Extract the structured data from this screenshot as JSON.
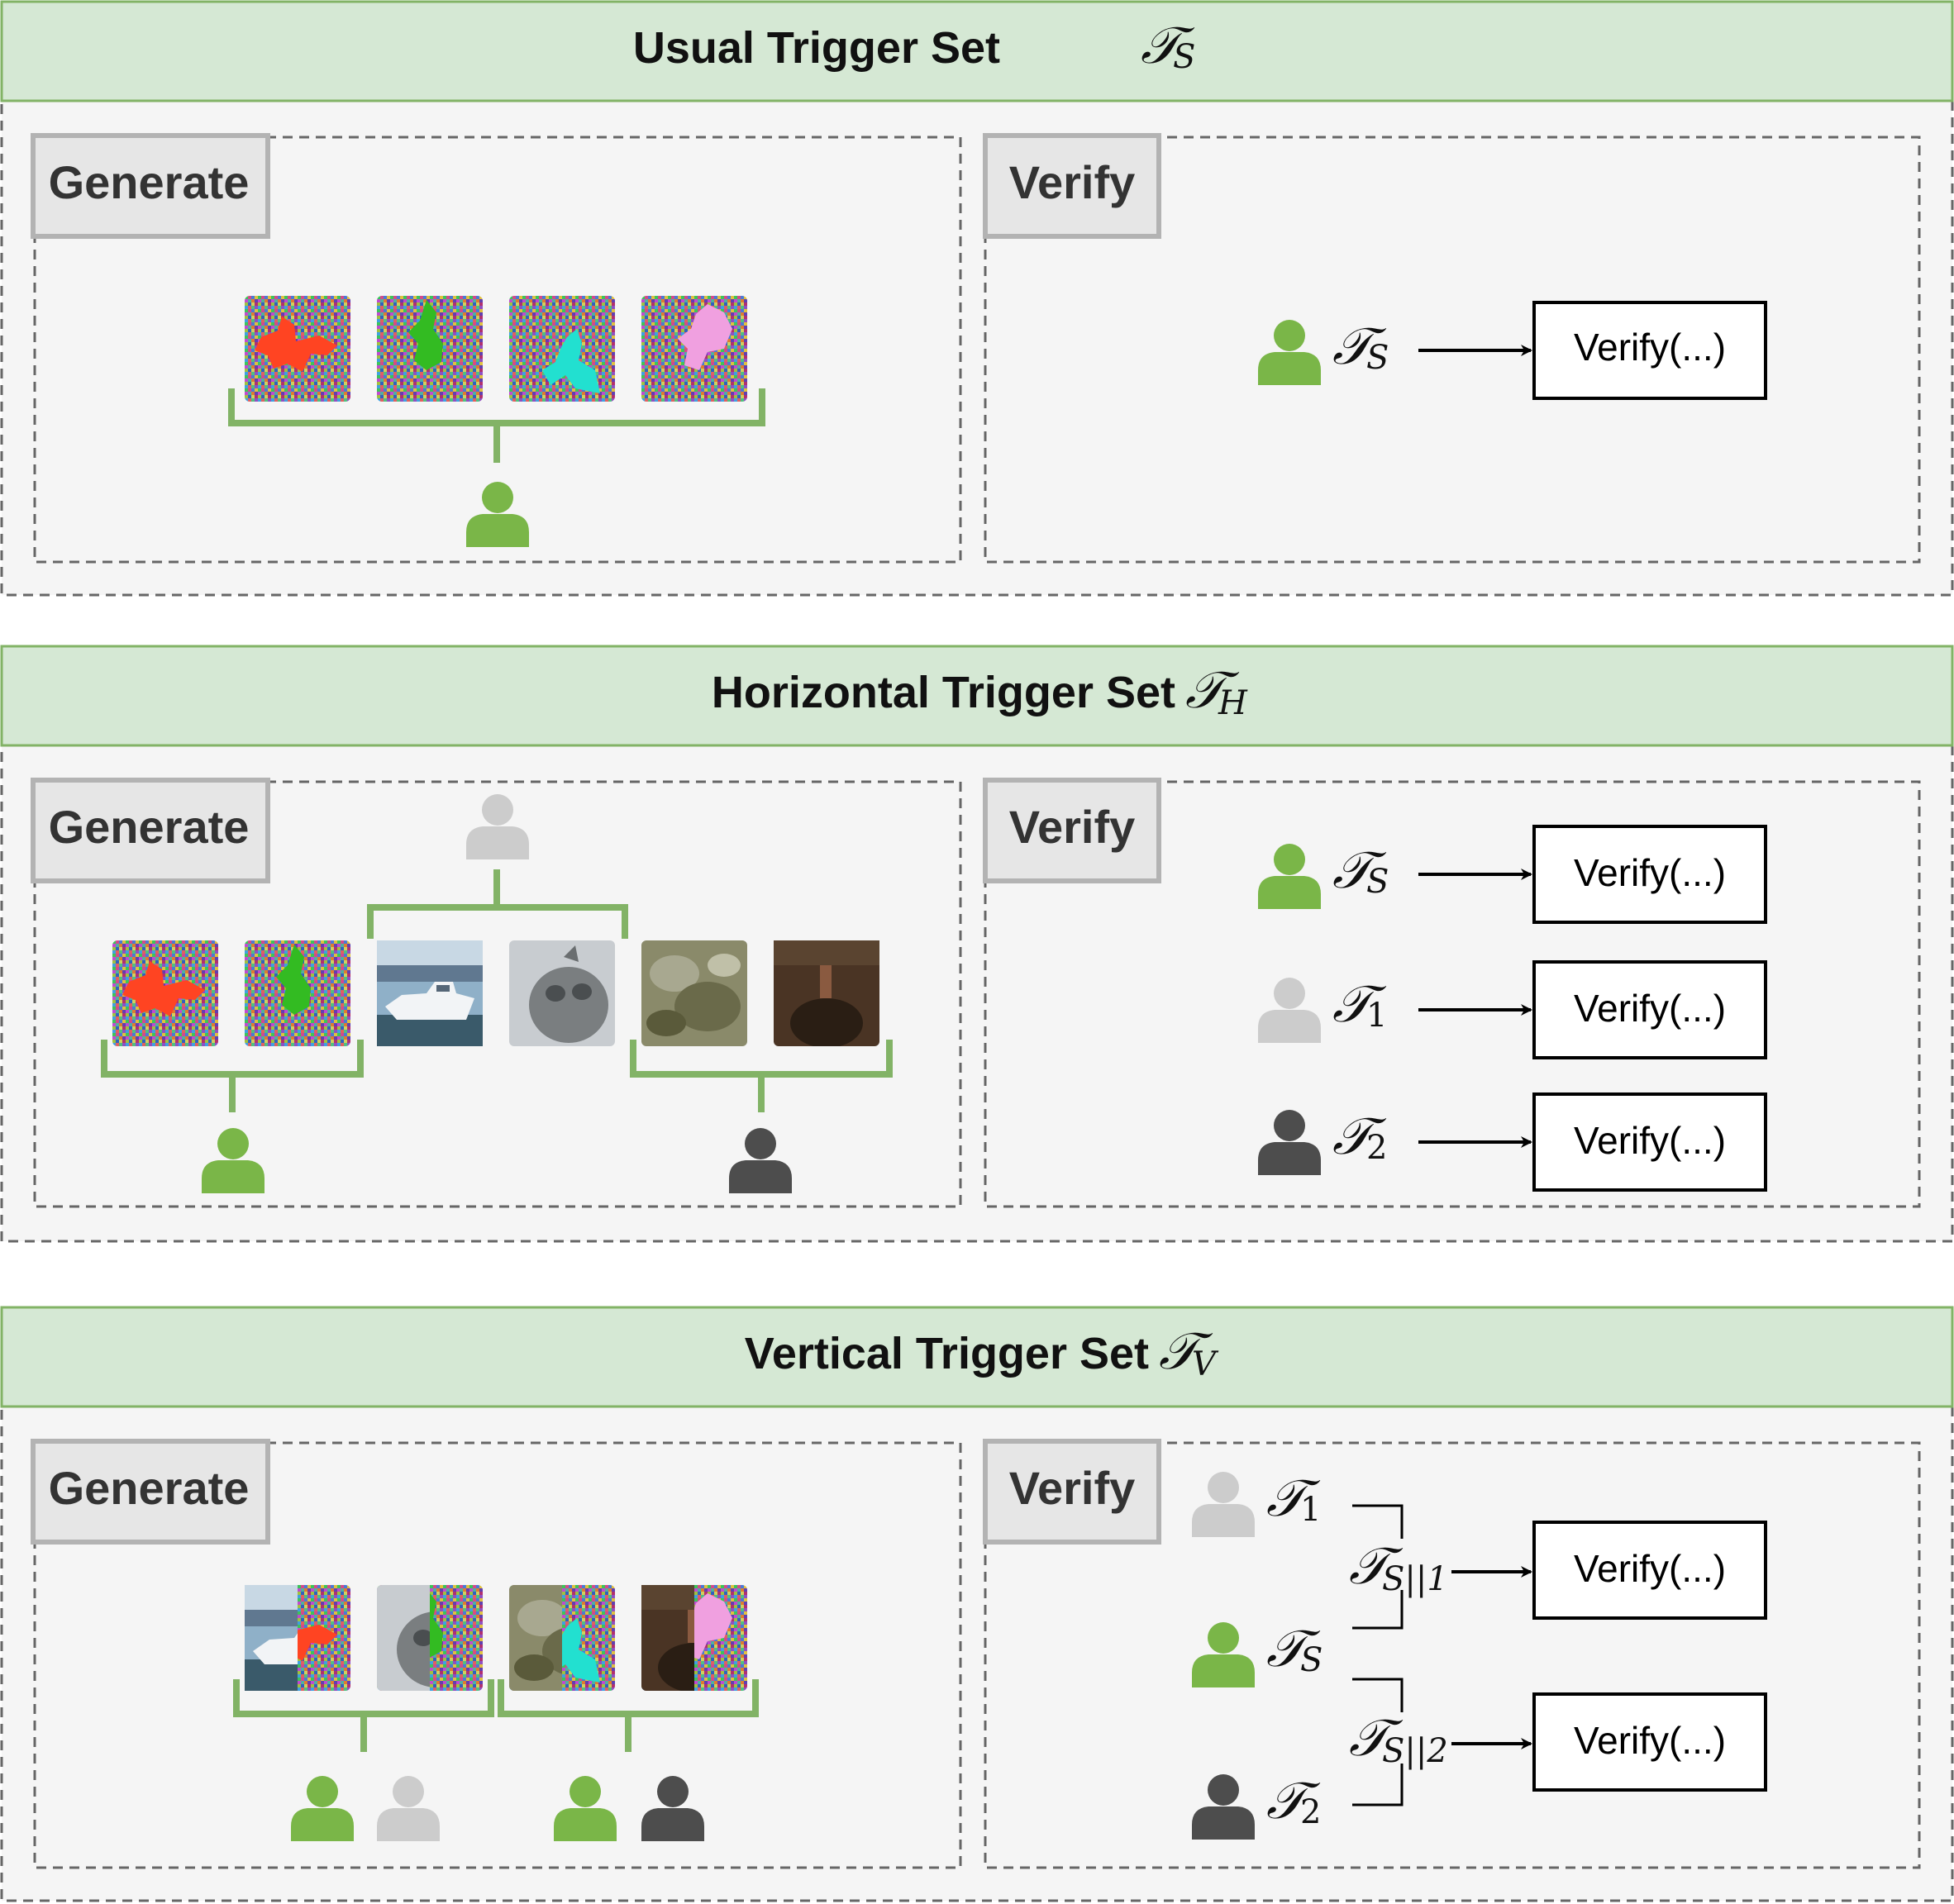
{
  "sections": [
    {
      "title": "Usual Trigger Set",
      "symbol": "𝒯",
      "symbol_sub": "S",
      "generate_label": "Generate",
      "verify_label": "Verify",
      "verify_rows": [
        {
          "symbol": "𝒯",
          "sub": "S",
          "owner_color": "#7ab648",
          "button": "Verify(...)"
        }
      ]
    },
    {
      "title": "Horizontal Trigger Set",
      "symbol": "𝒯",
      "symbol_sub": "H",
      "generate_label": "Generate",
      "verify_label": "Verify",
      "verify_rows": [
        {
          "symbol": "𝒯",
          "sub": "S",
          "owner_color": "#7ab648",
          "button": "Verify(...)"
        },
        {
          "symbol": "𝒯",
          "sub": "1",
          "owner_color": "#cccccc",
          "button": "Verify(...)"
        },
        {
          "symbol": "𝒯",
          "sub": "2",
          "owner_color": "#4d4d4d",
          "button": "Verify(...)"
        }
      ]
    },
    {
      "title": "Vertical Trigger Set",
      "symbol": "𝒯",
      "symbol_sub": "V",
      "generate_label": "Generate",
      "verify_label": "Verify",
      "verify_sources": [
        {
          "symbol": "𝒯",
          "sub": "1",
          "owner_color": "#cccccc"
        },
        {
          "symbol": "𝒯",
          "sub": "S",
          "owner_color": "#7ab648"
        },
        {
          "symbol": "𝒯",
          "sub": "2",
          "owner_color": "#4d4d4d"
        }
      ],
      "verify_combined": [
        {
          "symbol": "𝒯",
          "sub": "S||1",
          "button": "Verify(...)"
        },
        {
          "symbol": "𝒯",
          "sub": "S||2",
          "button": "Verify(...)"
        }
      ]
    }
  ],
  "colors": {
    "header_fill": "#d5e8d4",
    "header_stroke": "#82b366",
    "panel_fill": "#f5f5f5",
    "dash_stroke": "#666666",
    "label_fill": "#e6e6e6",
    "label_stroke": "#b3b3b3",
    "bracket": "#82b366",
    "owner_green": "#7ab648",
    "owner_light": "#cccccc",
    "owner_dark": "#4d4d4d",
    "trigger_red": "#ff4422",
    "trigger_green": "#33bb22",
    "trigger_cyan": "#22e0d0",
    "trigger_pink": "#f0a0e0"
  },
  "icons": [
    "user-icon",
    "trigger-image-icon",
    "photo-icon",
    "arrow-icon"
  ]
}
